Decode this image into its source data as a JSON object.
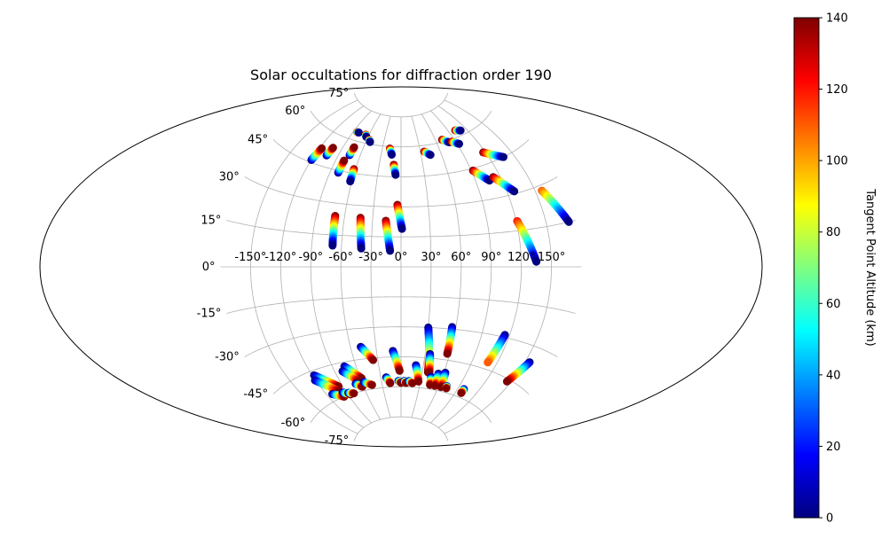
{
  "chart_data": {
    "type": "scatter",
    "projection": "aitoff",
    "title": "Solar occultations for diffraction order 190",
    "xlabel": "",
    "ylabel": "",
    "x_range": [
      -180,
      180
    ],
    "y_range": [
      -90,
      90
    ],
    "grid": true,
    "lon_ticks": [
      -150,
      -120,
      -90,
      -60,
      -30,
      0,
      30,
      60,
      90,
      120,
      150
    ],
    "lon_tick_labels": [
      "-150°",
      "-120°",
      "-90°",
      "-60°",
      "-30°",
      "0°",
      "30°",
      "60°",
      "90°",
      "120°",
      "150°"
    ],
    "lat_ticks": [
      -75,
      -60,
      -45,
      -30,
      -15,
      0,
      15,
      30,
      45,
      60,
      75
    ],
    "lat_tick_labels": [
      "-75°",
      "-60°",
      "-45°",
      "-30°",
      "-15°",
      "0°",
      "15°",
      "30°",
      "45°",
      "60°",
      "75°"
    ],
    "colorbar": {
      "label": "Tangent Point Altitude (km)",
      "colormap": "jet",
      "range": [
        0,
        140
      ],
      "ticks": [
        0,
        20,
        40,
        60,
        80,
        100,
        120,
        140
      ],
      "tick_labels": [
        "0",
        "20",
        "40",
        "60",
        "80",
        "100",
        "120",
        "140"
      ]
    },
    "tracks": [
      {
        "start": [
          -120,
          46
        ],
        "end": [
          -117,
          52
        ],
        "alt_start": 0,
        "alt_end": 140
      },
      {
        "start": [
          -105,
          50
        ],
        "end": [
          -103,
          54
        ],
        "alt_start": 0,
        "alt_end": 140
      },
      {
        "start": [
          -80,
          44
        ],
        "end": [
          -79,
          50
        ],
        "alt_start": 0,
        "alt_end": 140
      },
      {
        "start": [
          -75,
          53
        ],
        "end": [
          -74,
          57
        ],
        "alt_start": 0,
        "alt_end": 140
      },
      {
        "start": [
          -83,
          64
        ],
        "end": [
          -80,
          64
        ],
        "alt_start": 140,
        "alt_end": 0
      },
      {
        "start": [
          -66,
          64
        ],
        "end": [
          -63,
          63
        ],
        "alt_start": 140,
        "alt_end": 0
      },
      {
        "start": [
          -56,
          62
        ],
        "end": [
          -53,
          61
        ],
        "alt_start": 140,
        "alt_end": 0
      },
      {
        "start": [
          -62,
          47
        ],
        "end": [
          -62,
          41
        ],
        "alt_start": 140,
        "alt_end": 0
      },
      {
        "start": [
          -70,
          24
        ],
        "end": [
          -69,
          10
        ],
        "alt_start": 140,
        "alt_end": 0
      },
      {
        "start": [
          -43,
          24
        ],
        "end": [
          -40,
          9
        ],
        "alt_start": 140,
        "alt_end": 0
      },
      {
        "start": [
          -16,
          23
        ],
        "end": [
          -11,
          8
        ],
        "alt_start": 140,
        "alt_end": 0
      },
      {
        "start": [
          -4,
          31
        ],
        "end": [
          1,
          19
        ],
        "alt_start": 140,
        "alt_end": 0
      },
      {
        "start": [
          -18,
          59
        ],
        "end": [
          -14,
          56
        ],
        "alt_start": 140,
        "alt_end": 0
      },
      {
        "start": [
          -10,
          51
        ],
        "end": [
          -7,
          46
        ],
        "alt_start": 140,
        "alt_end": 0
      },
      {
        "start": [
          36,
          57
        ],
        "end": [
          44,
          55
        ],
        "alt_start": 140,
        "alt_end": 0
      },
      {
        "start": [
          71,
          61
        ],
        "end": [
          80,
          59
        ],
        "alt_start": 140,
        "alt_end": 0
      },
      {
        "start": [
          84,
          59
        ],
        "end": [
          93,
          57
        ],
        "alt_start": 140,
        "alt_end": 0
      },
      {
        "start": [
          102,
          63
        ],
        "end": [
          110,
          62
        ],
        "alt_start": 140,
        "alt_end": 0
      },
      {
        "start": [
          117,
          50
        ],
        "end": [
          137,
          45
        ],
        "alt_start": 140,
        "alt_end": 0
      },
      {
        "start": [
          92,
          44
        ],
        "end": [
          106,
          38
        ],
        "alt_start": 140,
        "alt_end": 0
      },
      {
        "start": [
          112,
          39
        ],
        "end": [
          128,
          31
        ],
        "alt_start": 140,
        "alt_end": 0
      },
      {
        "start": [
          121,
          19
        ],
        "end": [
          135,
          2
        ],
        "alt_start": 120,
        "alt_end": 0
      },
      {
        "start": [
          157,
          28
        ],
        "end": [
          173,
          15
        ],
        "alt_start": 110,
        "alt_end": 0
      },
      {
        "start": [
          -118,
          -47
        ],
        "end": [
          -96,
          -55
        ],
        "alt_start": 0,
        "alt_end": 140
      },
      {
        "start": [
          -121,
          -49
        ],
        "end": [
          -100,
          -57
        ],
        "alt_start": 0,
        "alt_end": 140
      },
      {
        "start": [
          -112,
          -57
        ],
        "end": [
          -98,
          -60
        ],
        "alt_start": 0,
        "alt_end": 140
      },
      {
        "start": [
          -96,
          -58
        ],
        "end": [
          -86,
          -60
        ],
        "alt_start": 0,
        "alt_end": 140
      },
      {
        "start": [
          -88,
          -59
        ],
        "end": [
          -80,
          -60
        ],
        "alt_start": 0,
        "alt_end": 140
      },
      {
        "start": [
          -75,
          -47
        ],
        "end": [
          -58,
          -54
        ],
        "alt_start": 0,
        "alt_end": 140
      },
      {
        "start": [
          -80,
          -49
        ],
        "end": [
          -64,
          -55
        ],
        "alt_start": 0,
        "alt_end": 140
      },
      {
        "start": [
          -70,
          -56
        ],
        "end": [
          -62,
          -58
        ],
        "alt_start": 0,
        "alt_end": 140
      },
      {
        "start": [
          -57,
          -56
        ],
        "end": [
          -46,
          -58
        ],
        "alt_start": 0,
        "alt_end": 140
      },
      {
        "start": [
          -48,
          -39
        ],
        "end": [
          -36,
          -46
        ],
        "alt_start": 0,
        "alt_end": 140
      },
      {
        "start": [
          -22,
          -55
        ],
        "end": [
          -17,
          -58
        ],
        "alt_start": 0,
        "alt_end": 140
      },
      {
        "start": [
          -10,
          -42
        ],
        "end": [
          -2,
          -52
        ],
        "alt_start": 0,
        "alt_end": 140
      },
      {
        "start": [
          -4,
          -57
        ],
        "end": [
          0,
          -58
        ],
        "alt_start": 0,
        "alt_end": 140
      },
      {
        "start": [
          5,
          -57
        ],
        "end": [
          8,
          -58
        ],
        "alt_start": 0,
        "alt_end": 140
      },
      {
        "start": [
          12,
          -57
        ],
        "end": [
          18,
          -58
        ],
        "alt_start": 0,
        "alt_end": 140
      },
      {
        "start": [
          20,
          -49
        ],
        "end": [
          27,
          -57
        ],
        "alt_start": 0,
        "alt_end": 140
      },
      {
        "start": [
          30,
          -30
        ],
        "end": [
          38,
          -52
        ],
        "alt_start": 0,
        "alt_end": 140
      },
      {
        "start": [
          36,
          -43
        ],
        "end": [
          40,
          -52
        ],
        "alt_start": 0,
        "alt_end": 140
      },
      {
        "start": [
          44,
          -54
        ],
        "end": [
          46,
          -58
        ],
        "alt_start": 0,
        "alt_end": 140
      },
      {
        "start": [
          53,
          -52
        ],
        "end": [
          54,
          -58
        ],
        "alt_start": 0,
        "alt_end": 140
      },
      {
        "start": [
          56,
          -29
        ],
        "end": [
          57,
          -42
        ],
        "alt_start": 0,
        "alt_end": 140
      },
      {
        "start": [
          62,
          -51
        ],
        "end": [
          64,
          -58
        ],
        "alt_start": 0,
        "alt_end": 140
      },
      {
        "start": [
          72,
          -57
        ],
        "end": [
          73,
          -58
        ],
        "alt_start": 0,
        "alt_end": 140
      },
      {
        "start": [
          99,
          -56
        ],
        "end": [
          99,
          -58
        ],
        "alt_start": 0,
        "alt_end": 140
      },
      {
        "start": [
          115,
          -29
        ],
        "end": [
          109,
          -42
        ],
        "alt_start": 0,
        "alt_end": 110
      },
      {
        "start": [
          155,
          -36
        ],
        "end": [
          145,
          -46
        ],
        "alt_start": 0,
        "alt_end": 140
      }
    ]
  }
}
